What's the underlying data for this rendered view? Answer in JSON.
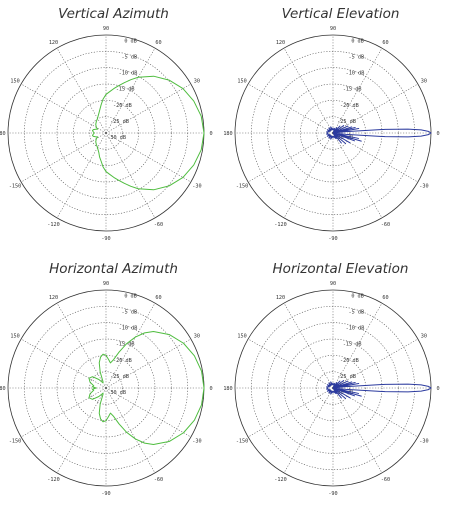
{
  "colors": {
    "azimuth": "#4fbd3f",
    "elevation": "#2b3a9e"
  },
  "polar_angle_ticks": [
    "0",
    "30",
    "60",
    "90",
    "120",
    "150",
    "180",
    "-150",
    "-120",
    "-90",
    "-60",
    "-30"
  ],
  "radial_labels": [
    "0 dB",
    "-5 dB",
    "-10 dB",
    "-15 dB",
    "-20 dB",
    "-25 dB",
    "-30 dB"
  ],
  "chart_data": [
    {
      "type": "polar-line",
      "title": "Vertical Azimuth",
      "color": "#4fbd3f",
      "angle_unit": "deg",
      "r_unit": "dB",
      "rlim": [
        -30,
        0
      ],
      "grid": true,
      "series": [
        {
          "angles": [
            0,
            10,
            20,
            30,
            40,
            50,
            60,
            65,
            70,
            75,
            80,
            85,
            90,
            95,
            100,
            110,
            120,
            130,
            140,
            150,
            155,
            160,
            165,
            170,
            175,
            180,
            185,
            190,
            195,
            200,
            205,
            210,
            220,
            230,
            240,
            250,
            255,
            260,
            265,
            270,
            275,
            280,
            285,
            290,
            295,
            300,
            310,
            320,
            330,
            340,
            350
          ],
          "values": [
            0,
            -0.4,
            -1.4,
            -2.8,
            -4.8,
            -7.3,
            -10.3,
            -12.0,
            -13.6,
            -15.0,
            -16.2,
            -17.3,
            -18.2,
            -19.6,
            -21.3,
            -23.6,
            -24.8,
            -25.4,
            -25.9,
            -26.6,
            -27.2,
            -26.6,
            -26.0,
            -25.8,
            -26.1,
            -26.4,
            -26.1,
            -25.8,
            -26.0,
            -26.6,
            -27.2,
            -26.6,
            -25.9,
            -25.4,
            -24.8,
            -23.6,
            -22.4,
            -21.3,
            -19.6,
            -18.2,
            -17.3,
            -16.2,
            -15.0,
            -13.6,
            -12.0,
            -10.3,
            -7.3,
            -4.8,
            -2.8,
            -1.4,
            -0.4
          ]
        }
      ]
    },
    {
      "type": "polar-line",
      "title": "Vertical Elevation",
      "color": "#2b3a9e",
      "angle_unit": "deg",
      "r_unit": "dB",
      "rlim": [
        -30,
        0
      ],
      "grid": true,
      "series": [
        {
          "angles": [
            -8,
            -6,
            -4,
            -3,
            -2,
            -1,
            0,
            1,
            2,
            3,
            4,
            6,
            8,
            10,
            12,
            14,
            16,
            18,
            20,
            25,
            30,
            35,
            40,
            45,
            50,
            55,
            60,
            70,
            80,
            90,
            100,
            110,
            120,
            130,
            140,
            150,
            160,
            170,
            180,
            190,
            200,
            210,
            220,
            230,
            240,
            250,
            260,
            270,
            280,
            290,
            300,
            305,
            310,
            315,
            320,
            325,
            330,
            335,
            340,
            342,
            344,
            346,
            348,
            350,
            352
          ],
          "values": [
            -30,
            -26,
            -14,
            -7,
            -3,
            -0.8,
            0,
            -0.8,
            -3,
            -7,
            -14,
            -26,
            -30,
            -22,
            -30,
            -23,
            -30,
            -24,
            -30,
            -25,
            -30,
            -26,
            -30,
            -27,
            -30,
            -28,
            -30,
            -28.5,
            -29,
            -28.5,
            -29,
            -28,
            -29,
            -28,
            -29,
            -28,
            -28.8,
            -28,
            -28.5,
            -28,
            -28.8,
            -28,
            -29,
            -28,
            -29,
            -28,
            -29,
            -28.5,
            -29,
            -28.5,
            -28,
            -30,
            -26,
            -30,
            -25,
            -30,
            -24,
            -30,
            -23,
            -30,
            -21,
            -30,
            -22,
            -30,
            -30
          ]
        }
      ]
    },
    {
      "type": "polar-line",
      "title": "Horizontal Azimuth",
      "color": "#4fbd3f",
      "angle_unit": "deg",
      "r_unit": "dB",
      "rlim": [
        -30,
        0
      ],
      "grid": true,
      "series": [
        {
          "angles": [
            0,
            10,
            20,
            30,
            40,
            50,
            55,
            60,
            65,
            70,
            75,
            80,
            85,
            90,
            95,
            100,
            105,
            110,
            115,
            120,
            130,
            140,
            150,
            160,
            170,
            175,
            180,
            185,
            190,
            200,
            210,
            220,
            230,
            240,
            245,
            250,
            255,
            260,
            265,
            270,
            275,
            280,
            285,
            290,
            295,
            300,
            305,
            310,
            320,
            330,
            340,
            350
          ],
          "values": [
            0,
            -0.3,
            -1.2,
            -2.6,
            -4.6,
            -7.4,
            -9.4,
            -12.0,
            -15.0,
            -18.3,
            -21.0,
            -22.2,
            -21.2,
            -20.0,
            -19.6,
            -20.4,
            -22.0,
            -24.8,
            -27.8,
            -28.2,
            -26.6,
            -24.6,
            -24.0,
            -24.8,
            -26.2,
            -25.8,
            -27.0,
            -25.8,
            -26.2,
            -24.8,
            -24.0,
            -24.6,
            -26.6,
            -28.2,
            -27.8,
            -24.8,
            -22.0,
            -20.4,
            -19.6,
            -20.0,
            -21.2,
            -22.2,
            -21.0,
            -18.3,
            -15.0,
            -12.0,
            -9.4,
            -7.4,
            -4.6,
            -2.6,
            -1.2,
            -0.3
          ]
        }
      ]
    },
    {
      "type": "polar-line",
      "title": "Horizontal Elevation",
      "color": "#2b3a9e",
      "angle_unit": "deg",
      "r_unit": "dB",
      "rlim": [
        -30,
        0
      ],
      "grid": true,
      "series": [
        {
          "angles": [
            -8,
            -6,
            -4,
            -3,
            -2,
            -1,
            0,
            1,
            2,
            3,
            4,
            6,
            8,
            10,
            12,
            14,
            16,
            18,
            20,
            25,
            30,
            35,
            40,
            45,
            50,
            55,
            60,
            70,
            80,
            90,
            100,
            110,
            120,
            130,
            140,
            150,
            160,
            170,
            180,
            190,
            200,
            210,
            220,
            230,
            240,
            250,
            260,
            270,
            280,
            290,
            300,
            305,
            310,
            315,
            320,
            325,
            330,
            335,
            340,
            342,
            344,
            346,
            348,
            350,
            352
          ],
          "values": [
            -30,
            -26,
            -14,
            -7,
            -3,
            -0.8,
            0,
            -0.8,
            -3,
            -7,
            -14,
            -26,
            -30,
            -22,
            -30,
            -23,
            -30,
            -24,
            -30,
            -25,
            -30,
            -26,
            -30,
            -27,
            -30,
            -28,
            -30,
            -28.5,
            -29,
            -28.5,
            -29,
            -28,
            -29,
            -28,
            -29,
            -28,
            -28.8,
            -28,
            -28.5,
            -28,
            -28.8,
            -28,
            -29,
            -28,
            -29,
            -28,
            -29,
            -28.5,
            -29,
            -28.5,
            -28,
            -30,
            -26,
            -30,
            -25,
            -30,
            -24,
            -30,
            -23,
            -30,
            -21,
            -30,
            -22,
            -30,
            -30
          ]
        }
      ]
    }
  ]
}
